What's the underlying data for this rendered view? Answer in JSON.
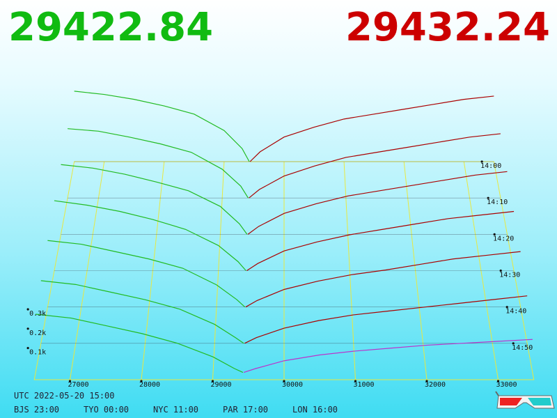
{
  "chart_data": {
    "type": "depth3d",
    "best_bid": 29422.84,
    "best_ask": 29432.24,
    "bid_color": "#11bb11",
    "ask_color": "#cc0000",
    "utc": "UTC 2022-05-20 15:00",
    "zones": [
      "BJS 23:00",
      "TYO 00:00",
      "NYC 11:00",
      "PAR 17:00",
      "LON 16:00"
    ],
    "xlim": [
      26500,
      33500
    ],
    "xticks": [
      27000,
      28000,
      29000,
      30000,
      31000,
      32000,
      33000
    ],
    "zlim": [
      0,
      60
    ],
    "zticks": [
      {
        "value": 0,
        "label": "14:00"
      },
      {
        "value": 10,
        "label": "14:10"
      },
      {
        "value": 20,
        "label": "14:20"
      },
      {
        "value": 30,
        "label": "14:30"
      },
      {
        "value": 40,
        "label": "14:40"
      },
      {
        "value": 50,
        "label": "14:50"
      }
    ],
    "yticks": [
      {
        "value": 100,
        "label": "0.1k"
      },
      {
        "value": 200,
        "label": "0.2k"
      },
      {
        "value": 300,
        "label": "0.3k"
      }
    ],
    "bid_x": [
      26500,
      27000,
      27500,
      28000,
      28500,
      29000,
      29300,
      29420
    ],
    "ask_x": [
      29432,
      29600,
      30000,
      30500,
      31000,
      31500,
      32000,
      32500,
      33000,
      33500
    ],
    "bid_series": [
      {
        "color": "#22bb22",
        "z": 0,
        "values": [
          430,
          410,
          380,
          340,
          290,
          190,
          80,
          0
        ]
      },
      {
        "color": "#22bb22",
        "z": 10,
        "values": [
          410,
          395,
          360,
          320,
          270,
          170,
          70,
          0
        ]
      },
      {
        "color": "#22bb22",
        "z": 20,
        "values": [
          400,
          380,
          345,
          300,
          250,
          160,
          60,
          0
        ]
      },
      {
        "color": "#22bb22",
        "z": 30,
        "values": [
          390,
          365,
          330,
          285,
          230,
          140,
          50,
          0
        ]
      },
      {
        "color": "#22bb22",
        "z": 40,
        "values": [
          360,
          340,
          300,
          260,
          210,
          120,
          40,
          0
        ]
      },
      {
        "color": "#22bb22",
        "z": 50,
        "values": [
          330,
          310,
          270,
          230,
          180,
          100,
          30,
          0
        ]
      },
      {
        "color": "#22bb22",
        "z": 58,
        "values": [
          300,
          280,
          240,
          200,
          150,
          80,
          20,
          0
        ]
      }
    ],
    "ask_series": [
      {
        "color": "#aa0000",
        "z": 0,
        "values": [
          0,
          60,
          150,
          210,
          260,
          290,
          320,
          350,
          380,
          400
        ]
      },
      {
        "color": "#aa0000",
        "z": 10,
        "values": [
          0,
          50,
          130,
          190,
          240,
          270,
          300,
          330,
          360,
          380
        ]
      },
      {
        "color": "#aa0000",
        "z": 20,
        "values": [
          0,
          45,
          120,
          175,
          220,
          250,
          280,
          310,
          340,
          360
        ]
      },
      {
        "color": "#aa0000",
        "z": 30,
        "values": [
          0,
          40,
          110,
          160,
          200,
          230,
          260,
          290,
          310,
          330
        ]
      },
      {
        "color": "#aa0000",
        "z": 40,
        "values": [
          0,
          35,
          95,
          140,
          175,
          200,
          230,
          260,
          280,
          300
        ]
      },
      {
        "color": "#aa0000",
        "z": 50,
        "values": [
          0,
          30,
          80,
          120,
          150,
          170,
          190,
          210,
          230,
          250
        ]
      },
      {
        "color": "#bb33cc",
        "z": 58,
        "values": [
          0,
          20,
          60,
          90,
          110,
          125,
          140,
          150,
          160,
          170
        ]
      }
    ]
  }
}
